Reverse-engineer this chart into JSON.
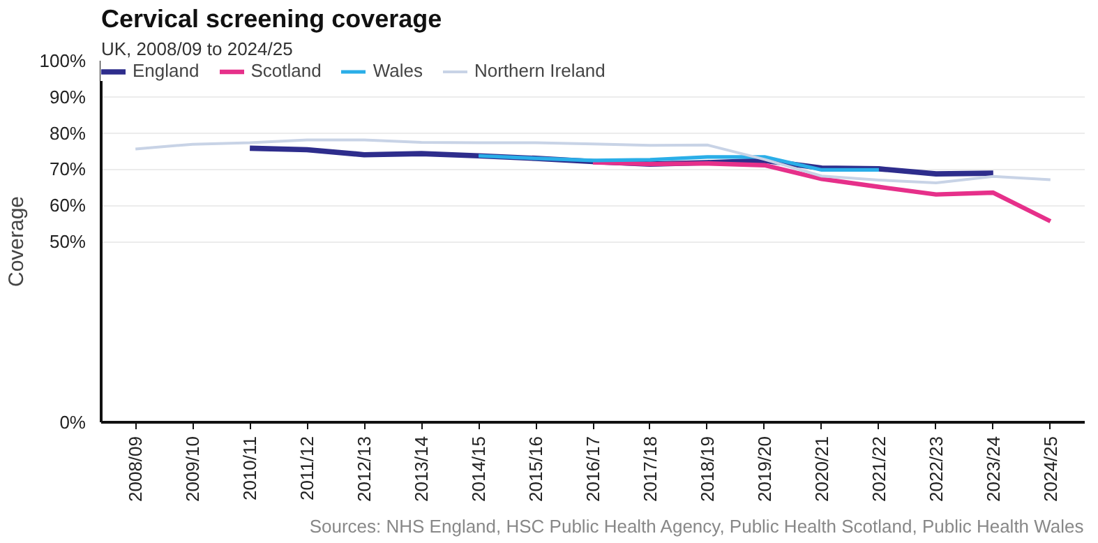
{
  "chart_data": {
    "type": "line",
    "title": "Cervical screening coverage",
    "subtitle": "UK, 2008/09 to 2024/25",
    "ylabel": "Coverage",
    "categories": [
      "2008/09",
      "2009/10",
      "2010/11",
      "2011/12",
      "2012/13",
      "2013/14",
      "2014/15",
      "2015/16",
      "2016/17",
      "2017/18",
      "2018/19",
      "2019/20",
      "2020/21",
      "2021/22",
      "2022/23",
      "2023/24",
      "2024/25"
    ],
    "series": [
      {
        "name": "England",
        "color": "#2e2d8c",
        "values": [
          null,
          null,
          75.8,
          75.4,
          74.0,
          74.3,
          73.7,
          73.0,
          72.1,
          71.4,
          71.8,
          72.4,
          70.3,
          70.1,
          68.7,
          68.9,
          null
        ]
      },
      {
        "name": "Scotland",
        "color": "#e6308a",
        "values": [
          null,
          null,
          null,
          null,
          null,
          null,
          null,
          null,
          71.9,
          71.4,
          71.6,
          71.1,
          67.3,
          65.1,
          63.0,
          63.5,
          55.6
        ]
      },
      {
        "name": "Wales",
        "color": "#2aaee8",
        "values": [
          null,
          null,
          null,
          null,
          null,
          null,
          73.7,
          73.0,
          72.4,
          72.6,
          73.4,
          73.4,
          69.8,
          69.8,
          null,
          null,
          null
        ]
      },
      {
        "name": "Northern Ireland",
        "color": "#c8d3e6",
        "values": [
          75.6,
          76.9,
          77.3,
          78.1,
          78.1,
          77.4,
          77.3,
          77.3,
          77.0,
          76.6,
          76.7,
          72.7,
          68.1,
          67.0,
          66.2,
          68.0,
          67.1
        ]
      }
    ],
    "ylim": [
      0,
      100
    ],
    "yticks": [
      {
        "value": 0,
        "label": "0%"
      },
      {
        "value": 50,
        "label": "50%"
      },
      {
        "value": 60,
        "label": "60%"
      },
      {
        "value": 70,
        "label": "70%"
      },
      {
        "value": 80,
        "label": "80%"
      },
      {
        "value": 90,
        "label": "90%"
      },
      {
        "value": 100,
        "label": "100%"
      }
    ],
    "grid": "y",
    "legend": "top left",
    "line_style": "solid",
    "marker": "none",
    "annotations": [
      "Sources: NHS England, HSC Public Health Agency, Public Health Scotland, Public Health Wales"
    ]
  }
}
